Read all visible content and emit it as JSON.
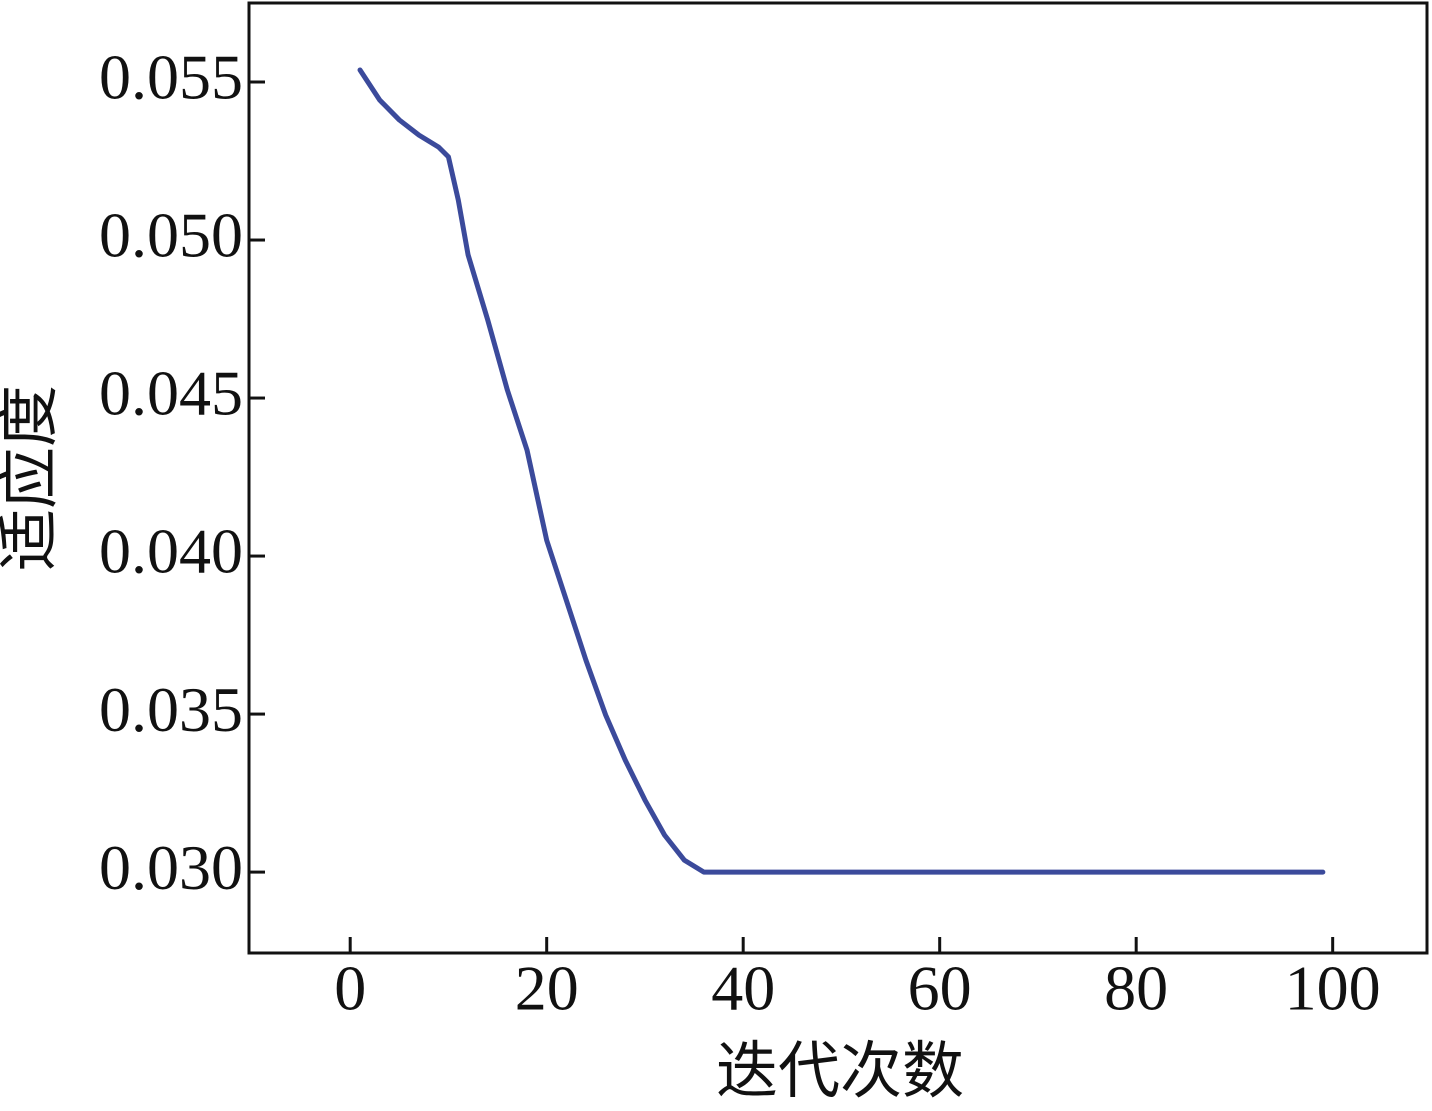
{
  "chart_data": {
    "type": "line",
    "x_label": "迭代次数",
    "y_label": "适应度",
    "x": [
      1,
      3,
      5,
      7,
      9,
      10,
      11,
      12,
      14,
      16,
      18,
      20,
      22,
      24,
      26,
      28,
      30,
      32,
      34,
      36,
      99
    ],
    "series": [
      {
        "color": "#3b4a9b",
        "values": [
          0.05538,
          0.05443,
          0.0538,
          0.05332,
          0.05294,
          0.05263,
          0.05127,
          0.04953,
          0.04747,
          0.04525,
          0.04335,
          0.0405,
          0.0386,
          0.0367,
          0.03497,
          0.03354,
          0.03228,
          0.03117,
          0.03038,
          0.03,
          0.03
        ]
      }
    ],
    "xlim": [
      -10.3,
      109.6
    ],
    "xticks": [
      0,
      20,
      40,
      60,
      80,
      100
    ],
    "ylim": [
      0.02744,
      0.0575
    ],
    "yticks": [
      {
        "value": 0.03,
        "label": "0.030"
      },
      0.035,
      {
        "value": 0.04,
        "label": "0.040"
      },
      0.045,
      {
        "value": 0.05,
        "label": "0.050"
      },
      0.055
    ],
    "grid": false
  }
}
